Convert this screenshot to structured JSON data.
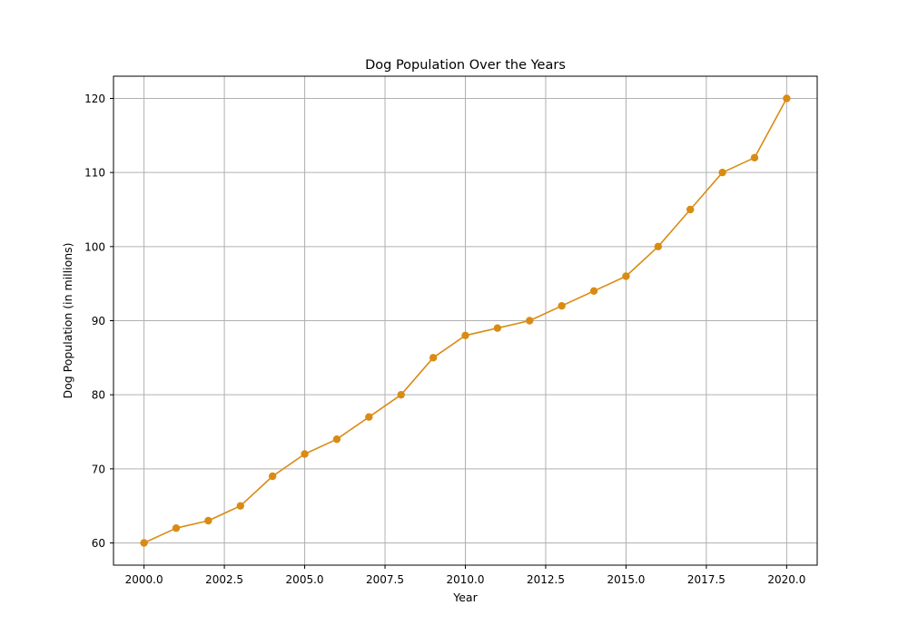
{
  "chart_data": {
    "type": "line",
    "title": "Dog Population Over the Years",
    "xlabel": "Year",
    "ylabel": "Dog Population (in millions)",
    "xlim": [
      1999.05,
      2020.95
    ],
    "ylim": [
      57.0,
      123.0
    ],
    "x_ticks": [
      "2000.0",
      "2002.5",
      "2005.0",
      "2007.5",
      "2010.0",
      "2012.5",
      "2015.0",
      "2017.5",
      "2020.0"
    ],
    "x_tick_values": [
      2000,
      2002.5,
      2005,
      2007.5,
      2010,
      2012.5,
      2015,
      2017.5,
      2020
    ],
    "y_ticks": [
      "60",
      "70",
      "80",
      "90",
      "100",
      "110",
      "120"
    ],
    "y_tick_values": [
      60,
      70,
      80,
      90,
      100,
      110,
      120
    ],
    "grid": true,
    "legend": false,
    "color": "#d98b13",
    "series": [
      {
        "x": [
          2000,
          2001,
          2002,
          2003,
          2004,
          2005,
          2006,
          2007,
          2008,
          2009,
          2010,
          2011,
          2012,
          2013,
          2014,
          2015,
          2016,
          2017,
          2018,
          2019,
          2020
        ],
        "values": [
          60,
          62,
          63,
          65,
          69,
          72,
          74,
          77,
          80,
          85,
          88,
          89,
          90,
          92,
          94,
          96,
          100,
          105,
          110,
          112,
          120
        ]
      }
    ]
  }
}
